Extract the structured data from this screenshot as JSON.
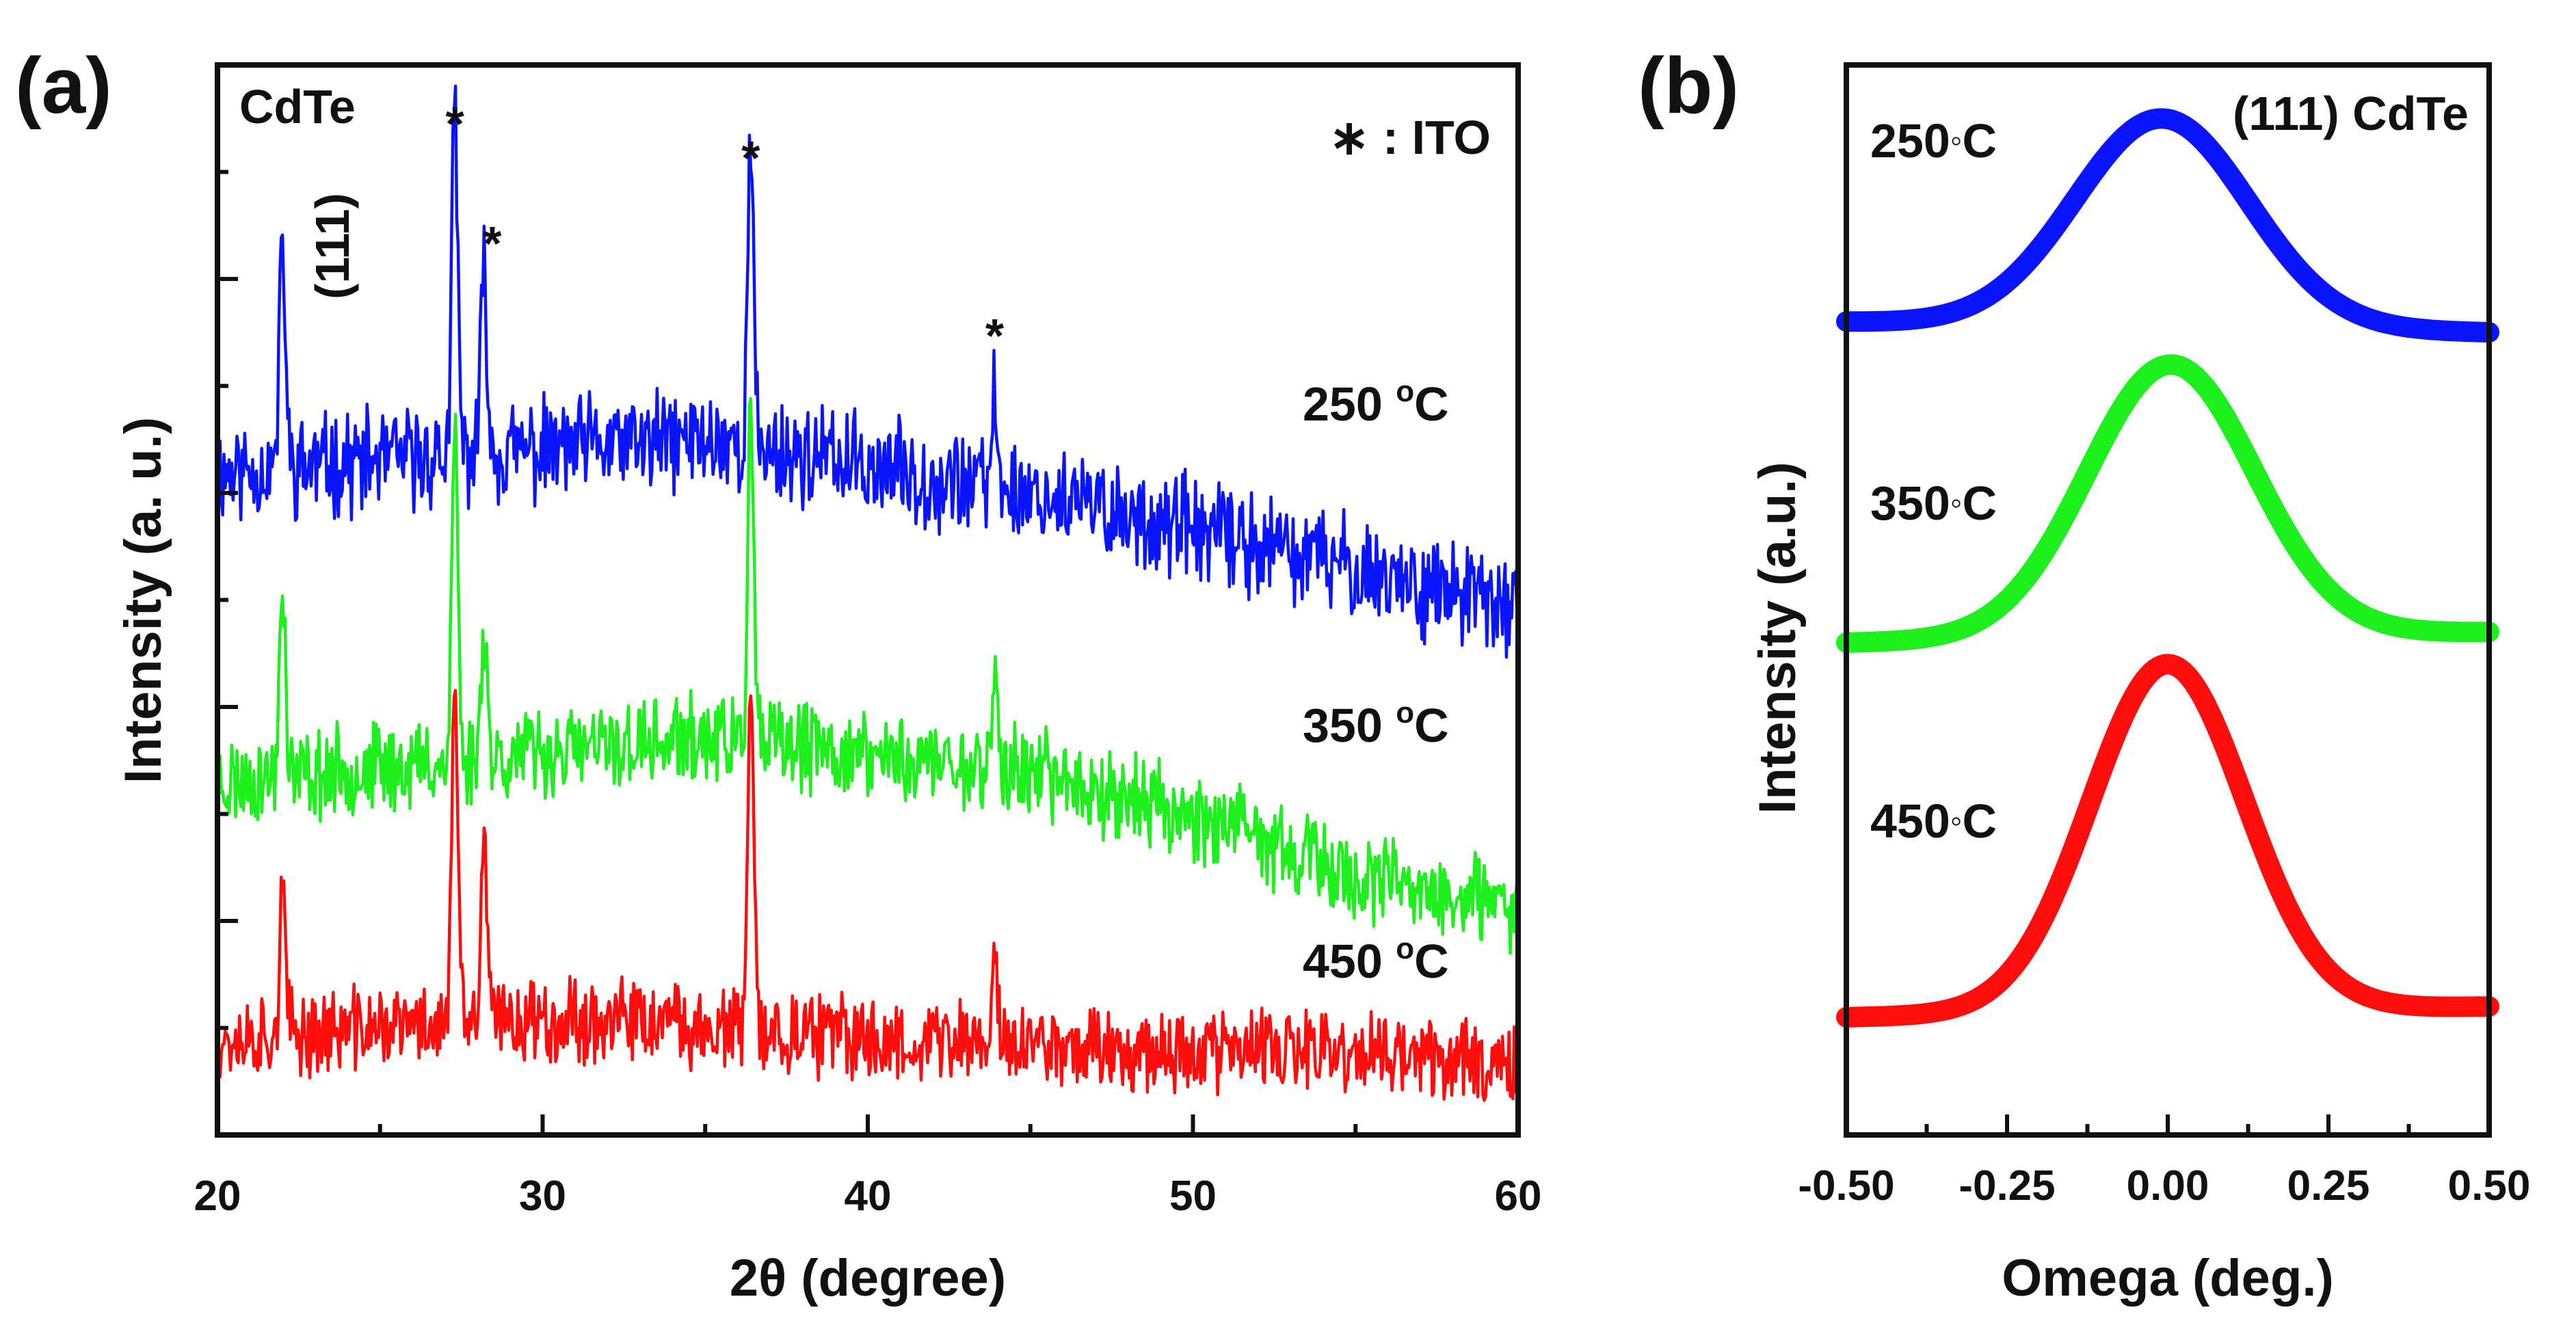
{
  "figure": {
    "panel_a_label": "(a)",
    "panel_b_label": "(b)"
  },
  "colors": {
    "250": "#0a14ff",
    "350": "#1df01d",
    "450": "#ff0d0d",
    "axis": "#111111"
  },
  "chart_data": [
    {
      "type": "line",
      "panel": "(a)",
      "title": "",
      "xlabel": "2θ (degree)",
      "ylabel": "Intensity (a. u.)",
      "xlim": [
        20,
        60
      ],
      "xticks": [
        20,
        30,
        40,
        50,
        60
      ],
      "ylim": [
        0,
        100
      ],
      "yticks_labeled": false,
      "annotations": {
        "cdte": "CdTe",
        "cdte_plane": "(111)",
        "ito_legend": "∗ : ITO",
        "ito_marks": [
          {
            "x": 27.3,
            "text": "*"
          },
          {
            "x": 28.2,
            "text": "*"
          },
          {
            "x": 36.4,
            "text": "*"
          },
          {
            "x": 43.9,
            "text": "*"
          }
        ]
      },
      "series": [
        {
          "name": "250 °C",
          "label_main": "250 ",
          "label_deg": "o",
          "label_unit": "C",
          "color_key": "250",
          "baseline": [
            [
              20,
              62
            ],
            [
              35,
              65
            ],
            [
              45,
              60
            ],
            [
              55,
              53
            ],
            [
              60,
              49
            ]
          ],
          "noise": 4.0,
          "seed": 11
        },
        {
          "name": "350 °C",
          "label_main": "350  ",
          "label_deg": "o",
          "label_unit": "C",
          "color_key": "350",
          "baseline": [
            [
              20,
              33
            ],
            [
              35,
              37
            ],
            [
              45,
              34
            ],
            [
              50,
              30
            ],
            [
              55,
              24
            ],
            [
              60,
              21
            ]
          ],
          "noise": 3.5,
          "seed": 23
        },
        {
          "name": "450 °C",
          "label_main": "450  ",
          "label_deg": "o",
          "label_unit": "C",
          "color_key": "450",
          "baseline": [
            [
              20,
              9
            ],
            [
              30,
              11
            ],
            [
              40,
              9
            ],
            [
              50,
              8
            ],
            [
              60,
              7
            ]
          ],
          "noise": 3.3,
          "seed": 37
        }
      ],
      "peaks": [
        {
          "x": 22.0,
          "heights": {
            "250": 21,
            "350": 19,
            "450": 13
          }
        },
        {
          "x": 27.3,
          "heights": {
            "250": 32,
            "350": 32,
            "450": 32
          }
        },
        {
          "x": 28.2,
          "heights": {
            "250": 18,
            "350": 13,
            "450": 17
          }
        },
        {
          "x": 36.4,
          "heights": {
            "250": 28,
            "350": 31,
            "450": 32
          }
        },
        {
          "x": 43.9,
          "heights": {
            "250": 8,
            "350": 8,
            "450": 8
          }
        }
      ]
    },
    {
      "type": "line",
      "panel": "(b)",
      "title": "(111) CdTe",
      "xlabel": "Omega (deg.)",
      "ylabel": "Intensity (a.u.)",
      "xlim": [
        -0.5,
        0.5
      ],
      "xticks": [
        "-0.50",
        "-0.25",
        "0.00",
        "0.25",
        "0.50"
      ],
      "ylim": [
        0,
        100
      ],
      "yticks_labeled": false,
      "series": [
        {
          "name": "250°C",
          "label_main": "250",
          "label_deg": "◦",
          "label_unit": "C",
          "color_key": "250",
          "center": -0.01,
          "sigma": 0.135,
          "baseline_left": 76,
          "baseline_right": 75,
          "peak": 95
        },
        {
          "name": "350°C",
          "label_main": "350",
          "label_deg": "◦",
          "label_unit": "C",
          "color_key": "350",
          "center": 0.005,
          "sigma": 0.13,
          "baseline_left": 46,
          "baseline_right": 47,
          "peak": 72
        },
        {
          "name": "450°C",
          "label_main": "450",
          "label_deg": "◦",
          "label_unit": "C",
          "color_key": "450",
          "center": 0.0,
          "sigma": 0.12,
          "baseline_left": 11,
          "baseline_right": 12,
          "peak": 44
        }
      ]
    }
  ]
}
